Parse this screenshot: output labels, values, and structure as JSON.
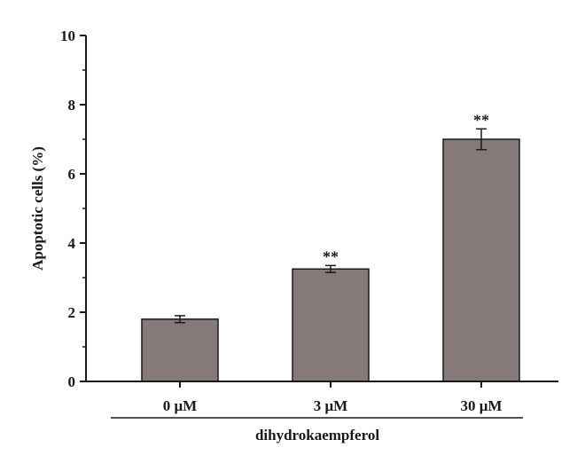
{
  "chart_data": {
    "type": "bar",
    "categories": [
      "0 μM",
      "3 μM",
      "30 μM"
    ],
    "values": [
      1.8,
      3.25,
      7.0
    ],
    "errors": [
      0.1,
      0.1,
      0.3
    ],
    "significance": [
      "",
      "**",
      "**"
    ],
    "ylabel": "Apoptotic cells (%)",
    "group_label": "dihydrokaempferol",
    "ylim": [
      0,
      10
    ],
    "y_ticks": [
      0,
      2,
      4,
      6,
      8,
      10
    ],
    "bar_color": "#857a79",
    "axis_color": "#1a1a1a",
    "grid": false
  }
}
